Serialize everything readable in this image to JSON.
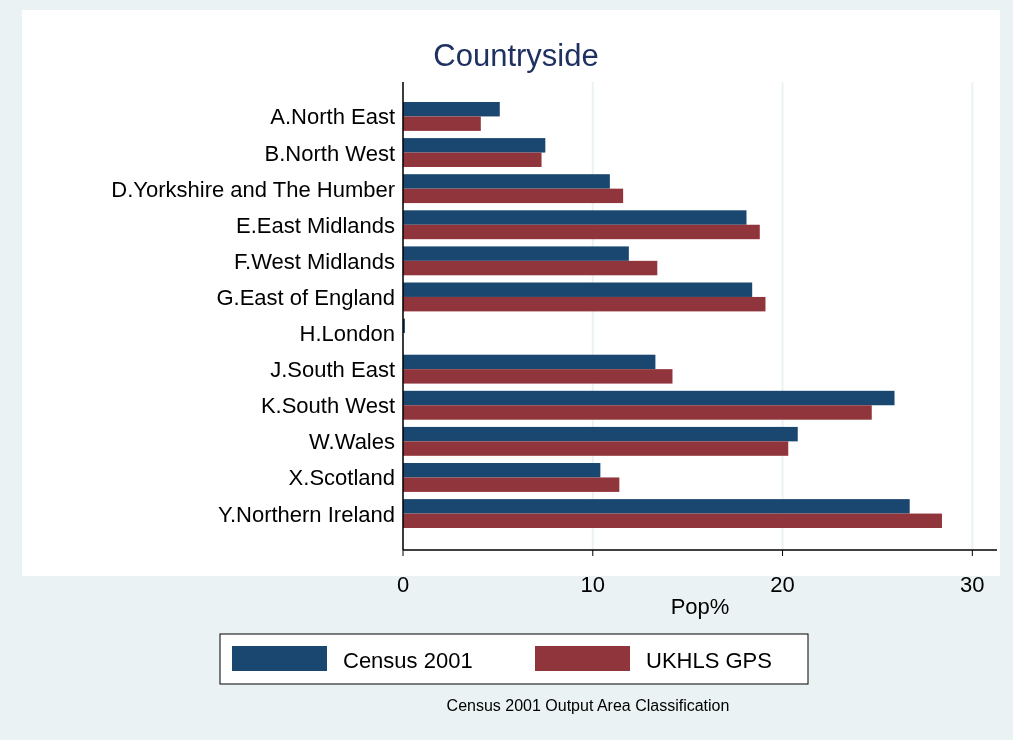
{
  "chart_data": {
    "type": "bar",
    "orientation": "horizontal",
    "title": "Countryside",
    "xlabel": "Pop%",
    "categories": [
      "A.North East",
      "B.North West",
      "D.Yorkshire and The Humber",
      "E.East Midlands",
      "F.West Midlands",
      "G.East of England",
      "H.London",
      "J.South East",
      "K.South West",
      "W.Wales",
      "X.Scotland",
      "Y.Northern Ireland"
    ],
    "series": [
      {
        "name": "Census 2001",
        "color": "#1a476f",
        "values": [
          5.1,
          7.5,
          10.9,
          18.1,
          11.9,
          18.4,
          0.1,
          13.3,
          25.9,
          20.8,
          10.4,
          26.7
        ]
      },
      {
        "name": "UKHLS GPS",
        "color": "#90353b",
        "values": [
          4.1,
          7.3,
          11.6,
          18.8,
          13.4,
          19.1,
          null,
          14.2,
          24.7,
          20.3,
          11.4,
          28.4
        ]
      }
    ],
    "xlim": [
      0,
      31.3
    ],
    "xticks": [
      0,
      10,
      20,
      30
    ],
    "grid": "x",
    "legend": "bottom",
    "annotations": [
      "Census 2001 Output Area Classification"
    ]
  }
}
